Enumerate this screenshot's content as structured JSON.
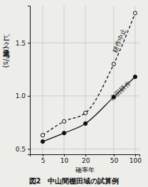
{
  "chart_data": {
    "type": "line",
    "title": "図2　中山間棚田域の試算例",
    "x_label": "確率年",
    "y_label": "ピーク流出量 (m³/s)",
    "log": "x",
    "grid": true,
    "x": [
      5,
      10,
      20,
      50,
      100
    ],
    "xlim": [
      3.3,
      115
    ],
    "xticks": [
      5,
      10,
      20,
      50,
      100
    ],
    "ylim": [
      0.45,
      1.85
    ],
    "yticks": [
      0.5,
      {
        "value": 1,
        "label": "1.0"
      },
      1.5
    ],
    "series": [
      {
        "name": "耕作中止",
        "color": "#111111",
        "marker": "circle-open",
        "line_style": "dashed",
        "values": [
          0.63,
          0.76,
          0.84,
          1.3,
          1.78
        ]
      },
      {
        "name": "水田耕作",
        "color": "#111111",
        "marker": "circle",
        "line_style": "solid",
        "values": [
          0.57,
          0.65,
          0.74,
          0.99,
          1.18
        ]
      }
    ]
  }
}
